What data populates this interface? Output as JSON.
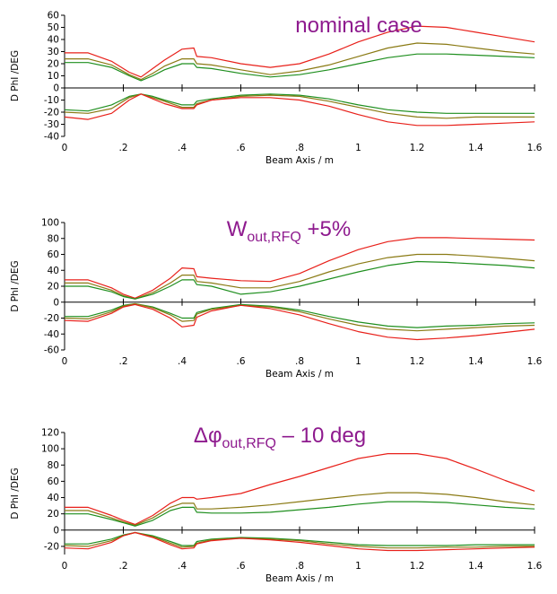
{
  "colors": {
    "upper": "#e8201a",
    "middle": "#8a7a14",
    "lower": "#1f8f1f",
    "title": "#8e1a8e"
  },
  "chart_data": [
    {
      "type": "line",
      "title": "nominal case",
      "title_parts": {
        "main": "nominal case",
        "sub": "",
        "tail": ""
      },
      "xlabel": "Beam Axis  / m",
      "ylabel": "D PhI /DEG",
      "xlim": [
        0,
        1.6
      ],
      "ylim": [
        -40,
        60
      ],
      "xticks": [
        "0",
        ".2",
        ".4",
        ".6",
        ".8",
        "1",
        "1.2",
        "1.4",
        "1.6"
      ],
      "yticks": [
        -40,
        -30,
        -20,
        -10,
        0,
        10,
        20,
        30,
        40,
        50,
        60
      ],
      "x": [
        0,
        0.08,
        0.16,
        0.22,
        0.26,
        0.3,
        0.34,
        0.4,
        0.44,
        0.45,
        0.5,
        0.6,
        0.7,
        0.8,
        0.9,
        1.0,
        1.1,
        1.2,
        1.3,
        1.4,
        1.5,
        1.6
      ],
      "series": [
        {
          "color": "upper",
          "values": [
            29,
            29,
            22,
            13,
            9,
            16,
            23,
            32,
            33,
            26,
            25,
            20,
            17,
            20,
            28,
            38,
            46,
            51,
            50,
            46,
            42,
            38
          ]
        },
        {
          "color": "middle",
          "values": [
            24,
            24,
            19,
            11,
            7,
            12,
            18,
            24,
            24,
            20,
            19,
            15,
            11,
            14,
            19,
            26,
            33,
            37,
            36,
            33,
            30,
            28
          ]
        },
        {
          "color": "lower",
          "values": [
            21,
            21,
            17,
            10,
            6,
            10,
            15,
            20,
            20,
            17,
            16,
            12,
            9,
            11,
            15,
            20,
            25,
            28,
            28,
            27,
            26,
            25
          ]
        },
        {
          "color": "lower",
          "values": [
            -18,
            -19,
            -14,
            -7,
            -5,
            -7,
            -10,
            -14,
            -14,
            -11,
            -9,
            -6,
            -5,
            -6,
            -9,
            -14,
            -18,
            -20,
            -21,
            -21,
            -21,
            -21
          ]
        },
        {
          "color": "middle",
          "values": [
            -20,
            -21,
            -17,
            -8,
            -5,
            -8,
            -11,
            -16,
            -16,
            -13,
            -10,
            -7,
            -6,
            -7,
            -11,
            -16,
            -21,
            -24,
            -25,
            -24,
            -24,
            -24
          ]
        },
        {
          "color": "upper",
          "values": [
            -24,
            -26,
            -21,
            -10,
            -5,
            -9,
            -13,
            -17,
            -17,
            -14,
            -10,
            -8,
            -8,
            -10,
            -15,
            -22,
            -28,
            -31,
            -31,
            -30,
            -29,
            -28
          ]
        }
      ]
    },
    {
      "type": "line",
      "title": "Wout,RFQ +5%",
      "title_parts": {
        "main": "W",
        "sub": "out,RFQ",
        "tail": " +5%"
      },
      "xlabel": "Beam Axis  / m",
      "ylabel": "D PhI /DEG",
      "xlim": [
        0,
        1.6
      ],
      "ylim": [
        -60,
        100
      ],
      "xticks": [
        "0",
        ".2",
        ".4",
        ".6",
        ".8",
        "1",
        "1.2",
        "1.4",
        "1.6"
      ],
      "yticks": [
        -60,
        -40,
        -20,
        0,
        20,
        40,
        60,
        80,
        100
      ],
      "x": [
        0,
        0.08,
        0.16,
        0.2,
        0.24,
        0.3,
        0.36,
        0.4,
        0.44,
        0.45,
        0.5,
        0.6,
        0.7,
        0.8,
        0.9,
        1.0,
        1.1,
        1.2,
        1.3,
        1.4,
        1.5,
        1.6
      ],
      "series": [
        {
          "color": "upper",
          "values": [
            28,
            28,
            18,
            10,
            5,
            15,
            30,
            43,
            42,
            32,
            30,
            27,
            26,
            36,
            52,
            66,
            76,
            81,
            81,
            80,
            79,
            78
          ]
        },
        {
          "color": "middle",
          "values": [
            24,
            24,
            15,
            8,
            4,
            12,
            24,
            34,
            34,
            26,
            24,
            18,
            18,
            26,
            38,
            48,
            56,
            60,
            60,
            58,
            55,
            52
          ]
        },
        {
          "color": "lower",
          "values": [
            20,
            20,
            13,
            7,
            4,
            10,
            20,
            28,
            28,
            22,
            20,
            10,
            13,
            20,
            29,
            38,
            46,
            51,
            50,
            48,
            46,
            43
          ]
        },
        {
          "color": "lower",
          "values": [
            -18,
            -18,
            -10,
            -4,
            -2,
            -6,
            -14,
            -20,
            -20,
            -13,
            -8,
            -3,
            -5,
            -10,
            -18,
            -25,
            -30,
            -32,
            -30,
            -29,
            -27,
            -26
          ]
        },
        {
          "color": "middle",
          "values": [
            -20,
            -21,
            -12,
            -5,
            -2,
            -7,
            -16,
            -24,
            -23,
            -15,
            -9,
            -4,
            -6,
            -12,
            -21,
            -29,
            -34,
            -36,
            -34,
            -32,
            -30,
            -29
          ]
        },
        {
          "color": "upper",
          "values": [
            -23,
            -24,
            -14,
            -6,
            -3,
            -9,
            -20,
            -31,
            -29,
            -19,
            -11,
            -4,
            -8,
            -16,
            -27,
            -37,
            -44,
            -47,
            -45,
            -42,
            -38,
            -34
          ]
        }
      ]
    },
    {
      "type": "line",
      "title": "Δφout,RFQ – 10 deg",
      "title_parts": {
        "main": "Δφ",
        "sub": "out,RFQ",
        "tail": " – 10 deg"
      },
      "xlabel": "Beam Axis  / m",
      "ylabel": "D PhI /DEG",
      "xlim": [
        0,
        1.6
      ],
      "ylim": [
        -30,
        120
      ],
      "xticks": [
        "0",
        ".2",
        ".4",
        ".6",
        ".8",
        "1",
        "1.2",
        "1.4",
        "1.6"
      ],
      "yticks": [
        -20,
        0,
        20,
        40,
        60,
        80,
        100,
        120
      ],
      "x": [
        0,
        0.08,
        0.16,
        0.2,
        0.24,
        0.3,
        0.36,
        0.4,
        0.44,
        0.45,
        0.5,
        0.6,
        0.7,
        0.8,
        0.9,
        1.0,
        1.1,
        1.2,
        1.3,
        1.4,
        1.5,
        1.6
      ],
      "series": [
        {
          "color": "upper",
          "values": [
            28,
            28,
            18,
            12,
            7,
            18,
            33,
            40,
            40,
            38,
            40,
            45,
            56,
            66,
            77,
            88,
            94,
            94,
            88,
            75,
            61,
            48
          ]
        },
        {
          "color": "middle",
          "values": [
            24,
            24,
            15,
            10,
            6,
            15,
            28,
            33,
            33,
            26,
            26,
            28,
            31,
            35,
            39,
            43,
            46,
            46,
            44,
            40,
            35,
            31
          ]
        },
        {
          "color": "lower",
          "values": [
            20,
            20,
            13,
            9,
            5,
            12,
            24,
            28,
            28,
            22,
            21,
            21,
            22,
            25,
            28,
            32,
            35,
            35,
            34,
            31,
            28,
            26
          ]
        },
        {
          "color": "lower",
          "values": [
            -17,
            -17,
            -11,
            -6,
            -3,
            -7,
            -14,
            -19,
            -19,
            -14,
            -11,
            -9,
            -10,
            -12,
            -15,
            -18,
            -19,
            -19,
            -19,
            -18,
            -18,
            -18
          ]
        },
        {
          "color": "middle",
          "values": [
            -19,
            -20,
            -13,
            -7,
            -3,
            -8,
            -16,
            -21,
            -20,
            -16,
            -12,
            -10,
            -11,
            -13,
            -17,
            -20,
            -22,
            -22,
            -21,
            -21,
            -20,
            -20
          ]
        },
        {
          "color": "upper",
          "values": [
            -22,
            -23,
            -15,
            -7,
            -3,
            -9,
            -18,
            -23,
            -22,
            -17,
            -13,
            -10,
            -12,
            -15,
            -19,
            -23,
            -25,
            -25,
            -24,
            -23,
            -22,
            -21
          ]
        }
      ]
    }
  ]
}
